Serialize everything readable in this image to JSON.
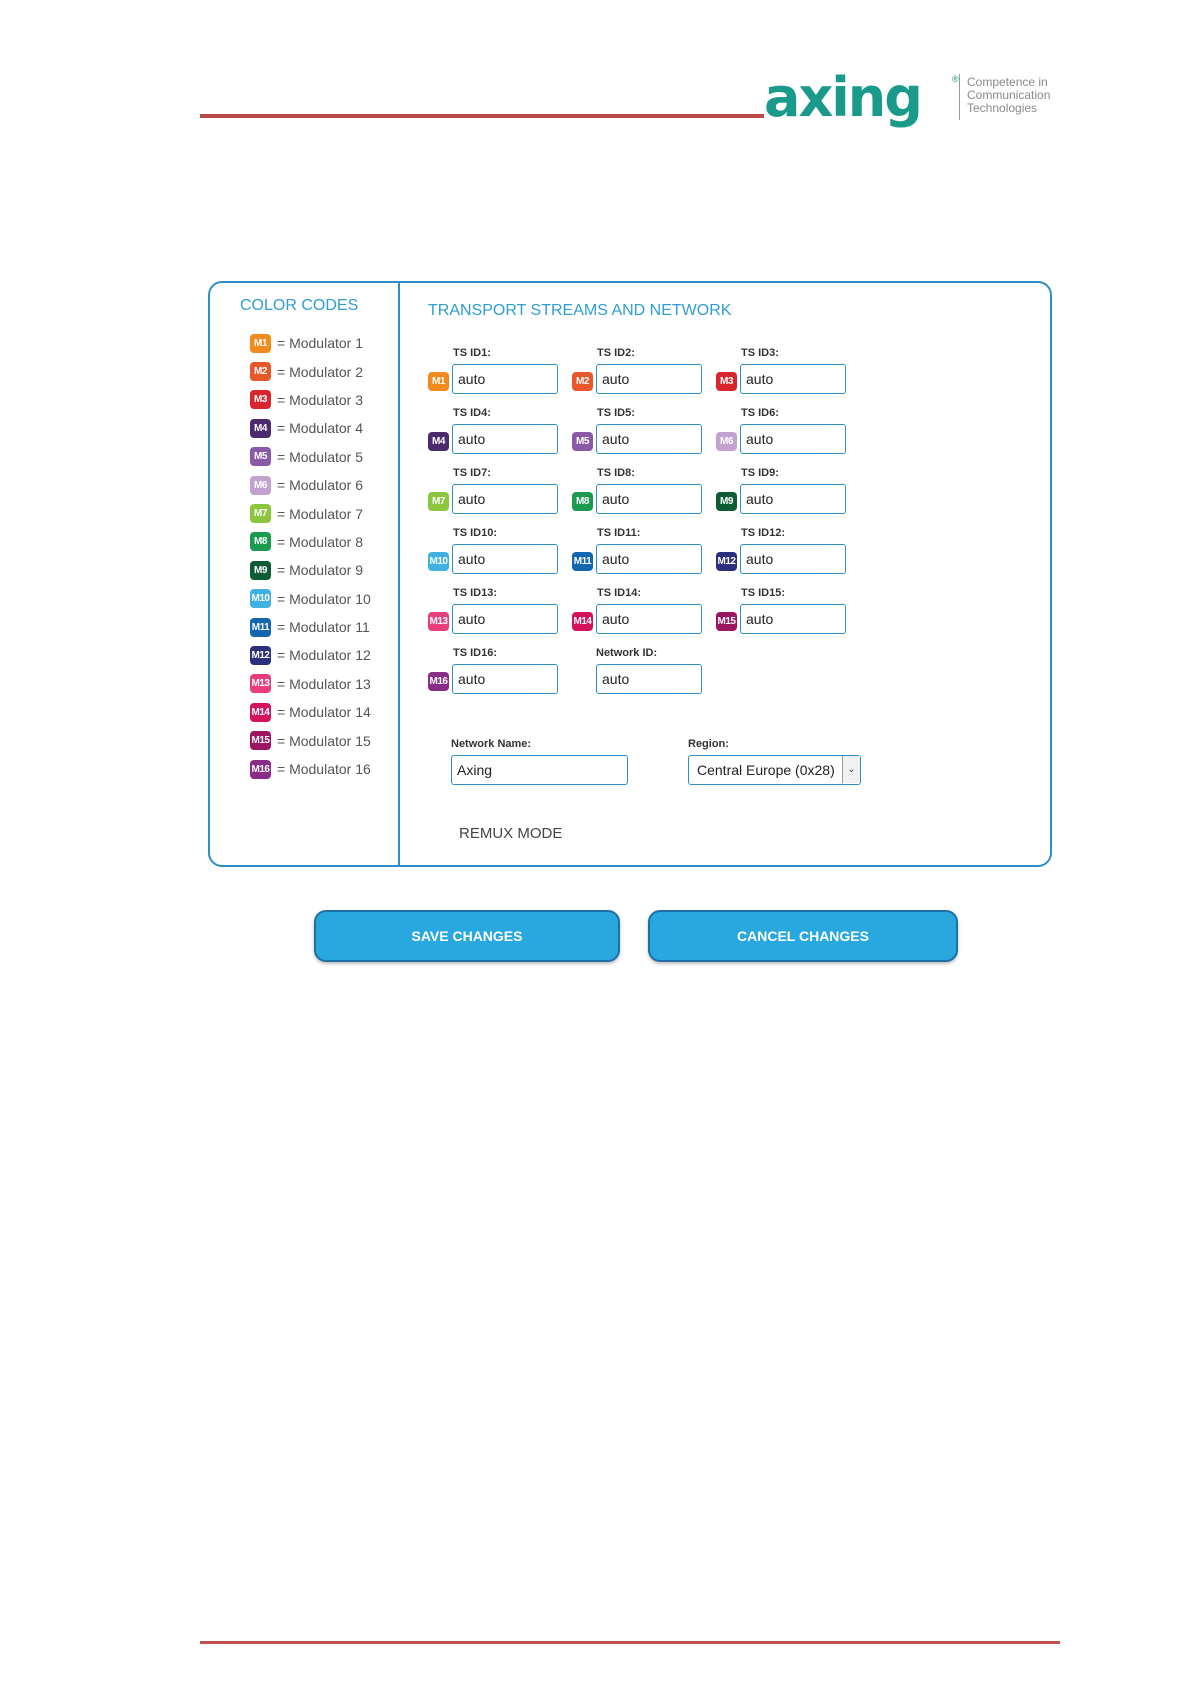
{
  "logo": {
    "word": "axing",
    "reg": "®",
    "tagline": [
      "Competence in",
      "Communication",
      "Technologies"
    ]
  },
  "color_codes": {
    "title": "COLOR CODES",
    "items": [
      {
        "badge": "M1",
        "label": "= Modulator 1",
        "color": "#f28a1e"
      },
      {
        "badge": "M2",
        "label": "= Modulator 2",
        "color": "#e8582a"
      },
      {
        "badge": "M3",
        "label": "= Modulator 3",
        "color": "#d9262e"
      },
      {
        "badge": "M4",
        "label": "= Modulator 4",
        "color": "#4b2a6e"
      },
      {
        "badge": "M5",
        "label": "= Modulator 5",
        "color": "#8a5aa8"
      },
      {
        "badge": "M6",
        "label": "= Modulator 6",
        "color": "#c3a2cf"
      },
      {
        "badge": "M7",
        "label": "= Modulator 7",
        "color": "#8cc63f"
      },
      {
        "badge": "M8",
        "label": "= Modulator 8",
        "color": "#1a9b50"
      },
      {
        "badge": "M9",
        "label": "= Modulator 9",
        "color": "#0e5c36"
      },
      {
        "badge": "M10",
        "label": "= Modulator 10",
        "color": "#3fb2e3"
      },
      {
        "badge": "M11",
        "label": "= Modulator 11",
        "color": "#1366b0"
      },
      {
        "badge": "M12",
        "label": "= Modulator 12",
        "color": "#2b2f7e"
      },
      {
        "badge": "M13",
        "label": "= Modulator 13",
        "color": "#e83e7e"
      },
      {
        "badge": "M14",
        "label": "= Modulator 14",
        "color": "#d5135d"
      },
      {
        "badge": "M15",
        "label": "= Modulator 15",
        "color": "#9c1560"
      },
      {
        "badge": "M16",
        "label": "= Modulator 16",
        "color": "#8a2d8a"
      }
    ]
  },
  "ts": {
    "title": "TRANSPORT STREAMS AND NETWORK",
    "fields": [
      {
        "label": "TS ID1:",
        "value": "auto"
      },
      {
        "label": "TS ID2:",
        "value": "auto"
      },
      {
        "label": "TS ID3:",
        "value": "auto"
      },
      {
        "label": "TS ID4:",
        "value": "auto"
      },
      {
        "label": "TS ID5:",
        "value": "auto"
      },
      {
        "label": "TS ID6:",
        "value": "auto"
      },
      {
        "label": "TS ID7:",
        "value": "auto"
      },
      {
        "label": "TS ID8:",
        "value": "auto"
      },
      {
        "label": "TS ID9:",
        "value": "auto"
      },
      {
        "label": "TS ID10:",
        "value": "auto"
      },
      {
        "label": "TS ID11:",
        "value": "auto"
      },
      {
        "label": "TS ID12:",
        "value": "auto"
      },
      {
        "label": "TS ID13:",
        "value": "auto"
      },
      {
        "label": "TS ID14:",
        "value": "auto"
      },
      {
        "label": "TS ID15:",
        "value": "auto"
      },
      {
        "label": "TS ID16:",
        "value": "auto"
      }
    ],
    "network_id": {
      "label": "Network ID:",
      "value": "auto"
    },
    "network_name": {
      "label": "Network Name:",
      "value": "Axing"
    },
    "region": {
      "label": "Region:",
      "value": "Central Europe (0x28)"
    },
    "remux_mode": "REMUX MODE"
  },
  "buttons": {
    "save": "SAVE CHANGES",
    "cancel": "CANCEL CHANGES"
  }
}
